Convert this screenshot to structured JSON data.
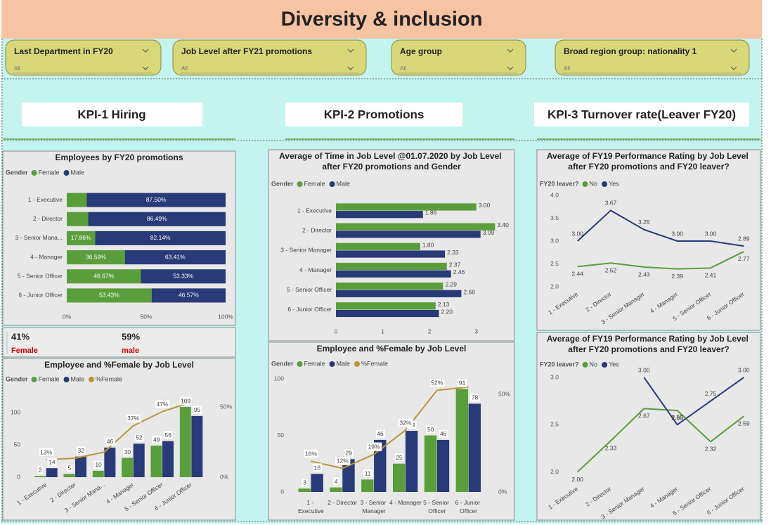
{
  "header": {
    "title": "Diversity & inclusion"
  },
  "slicers": [
    {
      "label": "Last Department in FY20",
      "value": "All"
    },
    {
      "label": "Job Level after FY21 promotions",
      "value": "All"
    },
    {
      "label": "Age group",
      "value": "All"
    },
    {
      "label": "Broad region group: nationality 1",
      "value": "All"
    }
  ],
  "kpis": [
    "KPI-1 Hiring",
    "KPI-2 Promotions",
    "KPI-3 Turnover rate(Leaver FY20)"
  ],
  "cards": [
    {
      "value": "41%",
      "label": "Female"
    },
    {
      "value": "59%",
      "label": "male"
    }
  ],
  "chart_data": [
    {
      "type": "bar",
      "horizontal": true,
      "stacked": true,
      "title": "Employees by FY20 promotions",
      "legend_title": "Gender",
      "categories": [
        "1 - Executive",
        "2 - Director",
        "3 - Senior Mana...",
        "4 - Manager",
        "5 - Senior Officer",
        "6 - Junior Officer"
      ],
      "series": [
        {
          "name": "Female",
          "color": "#5a9e3c",
          "values": [
            12.5,
            13.51,
            17.86,
            36.59,
            46.67,
            53.43
          ],
          "value_labels": [
            null,
            null,
            "17.86%",
            "36.59%",
            "46.67%",
            "53.43%"
          ]
        },
        {
          "name": "Male",
          "color": "#283a78",
          "values": [
            87.5,
            86.49,
            82.14,
            63.41,
            53.33,
            46.57
          ],
          "value_labels": [
            "87.50%",
            "86.49%",
            "82.14%",
            "63.41%",
            "53.33%",
            "46.57%"
          ]
        }
      ],
      "xlim": [
        0,
        100
      ],
      "xticks": [
        {
          "value": 0,
          "label": "0%"
        },
        {
          "value": 50,
          "label": "50%"
        },
        {
          "value": 100,
          "label": "100%"
        }
      ]
    },
    {
      "type": "bar",
      "title": "Employee and %Female by Job Level",
      "legend_title": "Gender",
      "categories": [
        "1 - Executive",
        "2 - Director",
        "3 - Senior Mana...",
        "4 - Manager",
        "5 - Senior Officer",
        "6 - Junior Officer"
      ],
      "series": [
        {
          "name": "Female",
          "color": "#5a9e3c",
          "values": [
            2,
            5,
            10,
            30,
            49,
            109
          ]
        },
        {
          "name": "Male",
          "color": "#283a78",
          "values": [
            14,
            32,
            46,
            52,
            56,
            95
          ]
        },
        {
          "name": "%Female",
          "type": "line",
          "axis": "y2",
          "color": "#b8963a",
          "values": [
            12.5,
            13.51,
            17.86,
            36.59,
            46.67,
            53.43
          ],
          "value_labels": [
            "13%",
            null,
            null,
            "37%",
            "47%",
            null
          ]
        }
      ],
      "ylim": [
        0,
        120
      ],
      "yticks": [
        0,
        50,
        100
      ],
      "y2lim": [
        0,
        55
      ],
      "y2ticks": [
        {
          "value": 0,
          "label": "0%"
        },
        {
          "value": 50,
          "label": "50%"
        }
      ]
    },
    {
      "type": "bar",
      "horizontal": true,
      "stacked": false,
      "title": "Average of Time in Job Level @01.07.2020 by Job Level after FY20 promotions and Gender",
      "legend_title": "Gender",
      "categories": [
        "1 - Executive",
        "2 - Director",
        "3 - Senior Manager",
        "4 - Manager",
        "5 - Senior Officer",
        "6 - Junior Officer"
      ],
      "series": [
        {
          "name": "Female",
          "color": "#5a9e3c",
          "values": [
            3.0,
            3.4,
            1.8,
            2.37,
            2.29,
            2.13
          ],
          "value_labels": [
            "3.00",
            "3.40",
            "1.80",
            "2.37",
            "2.29",
            "2.13"
          ]
        },
        {
          "name": "Male",
          "color": "#283a78",
          "values": [
            1.86,
            3.09,
            2.33,
            2.46,
            2.68,
            2.2
          ],
          "value_labels": [
            "1.86",
            "3.09",
            "2.33",
            "2.46",
            "2.68",
            "2.20"
          ]
        }
      ],
      "xlim": [
        0,
        3.5
      ],
      "xticks": [
        0,
        1,
        2,
        3
      ]
    },
    {
      "type": "bar",
      "title": "Employee and %Female by Job Level",
      "legend_title": "Gender",
      "categories": [
        "1 - Executive",
        "2 - Director",
        "3 - Senior Manager",
        "4 - Manager",
        "5 - Senior Officer",
        "6 - Junior Officer"
      ],
      "series": [
        {
          "name": "Female",
          "color": "#5a9e3c",
          "values": [
            3,
            4,
            11,
            25,
            50,
            91
          ]
        },
        {
          "name": "Male",
          "color": "#283a78",
          "values": [
            16,
            29,
            46,
            54,
            46,
            78
          ]
        },
        {
          "name": "%Female",
          "type": "line",
          "axis": "y2",
          "color": "#b8963a",
          "values": [
            15.79,
            12.12,
            19.3,
            31.65,
            52.08,
            53.85
          ],
          "value_labels": [
            "16%",
            "12%",
            "19%",
            "32%",
            "52%",
            null
          ]
        }
      ],
      "ylim": [
        0,
        100
      ],
      "yticks": [
        0,
        50,
        100
      ],
      "y2lim": [
        0,
        58
      ],
      "y2ticks": [
        {
          "value": 0,
          "label": "0%"
        },
        {
          "value": 50,
          "label": "50%"
        }
      ]
    },
    {
      "type": "line",
      "title": "Average of FY19 Performance Rating by Job Level after FY20 promotions and FY20 leaver?",
      "legend_title": "FY20 leaver?",
      "categories": [
        "1 - Executive",
        "2 - Director",
        "3 - Senior Manager",
        "4 - Manager",
        "5 - Senior Officer",
        "6 - Junior Officer"
      ],
      "series": [
        {
          "name": "No",
          "color": "#5a9e3c",
          "values": [
            2.44,
            2.52,
            2.43,
            2.39,
            2.41,
            2.77
          ],
          "value_labels": [
            "2.44",
            "2.52",
            "2.43",
            "2.39",
            "2.41",
            "2.77"
          ]
        },
        {
          "name": "Yes",
          "color": "#283a78",
          "values": [
            3.0,
            3.67,
            3.25,
            3.0,
            3.0,
            2.89
          ],
          "value_labels": [
            "3.00",
            "3.67",
            "3.25",
            "3.00",
            "3.00",
            "2.89"
          ]
        }
      ],
      "ylim": [
        2.0,
        4.0
      ],
      "yticks": [
        {
          "value": 2.0,
          "label": "2.0"
        },
        2.5,
        {
          "value": 3.0,
          "label": "3.0"
        },
        3.5,
        {
          "value": 4.0,
          "label": "4.0"
        }
      ]
    },
    {
      "type": "line",
      "title": "Average of FY19 Performance Rating by Job Level after FY20 promotions and FY20 leaver?",
      "legend_title": "FY20 leaver?",
      "categories": [
        "1 - Executive",
        "2 - Director",
        "3 - Senior Manager",
        "4 - Manager",
        "5 - Senior Officer",
        "6 - Junior Officer"
      ],
      "series": [
        {
          "name": "No",
          "color": "#5a9e3c",
          "values": [
            2.0,
            2.33,
            2.67,
            2.65,
            2.32,
            2.59
          ],
          "value_labels": [
            "2.00",
            "2.33",
            "2.67",
            "2.65",
            "2.32",
            "2.59"
          ]
        },
        {
          "name": "Yes",
          "color": "#283a78",
          "values": [
            null,
            null,
            3.0,
            2.5,
            2.75,
            3.0
          ],
          "value_labels": [
            null,
            null,
            "3.00",
            "2.50",
            "2.75",
            "3.00"
          ]
        }
      ],
      "ylim": [
        1.9,
        3.0
      ],
      "yticks": [
        {
          "value": 2.0,
          "label": "2.0"
        },
        2.5,
        {
          "value": 3.0,
          "label": "3.0"
        }
      ]
    }
  ]
}
